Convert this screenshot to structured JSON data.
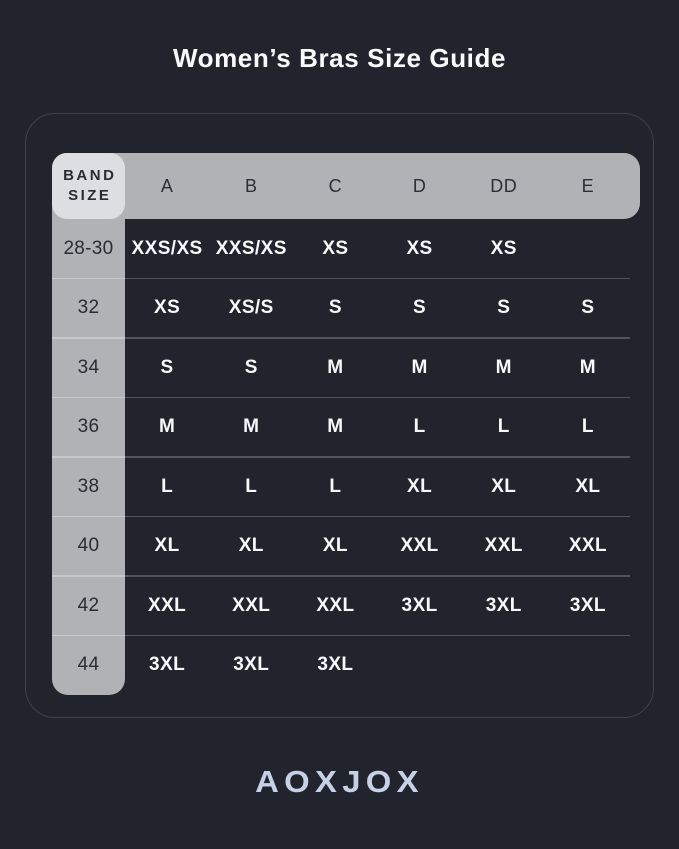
{
  "page": {
    "title": "Women’s Bras Size Guide",
    "brand": "AOXJOX",
    "background_color": "#22242d"
  },
  "colors": {
    "bg": "#22242d",
    "panel_border": "#3e414a",
    "gray_header": "#b1b2b6",
    "light_corner_cell": "#dddee1",
    "dark_text": "#2a2c34",
    "white_text": "#f7f8f9",
    "band_divider": "#c7c8cb",
    "data_divider": "#52545d",
    "logo": "#c7d1e5"
  },
  "table": {
    "corner_header_lines": [
      "BAND",
      "SIZE"
    ],
    "columns": [
      "A",
      "B",
      "C",
      "D",
      "DD",
      "E"
    ],
    "rows": [
      {
        "band": "28-30",
        "cells": [
          "XXS/XS",
          "XXS/XS",
          "XS",
          "XS",
          "XS",
          ""
        ]
      },
      {
        "band": "32",
        "cells": [
          "XS",
          "XS/S",
          "S",
          "S",
          "S",
          "S"
        ]
      },
      {
        "band": "34",
        "cells": [
          "S",
          "S",
          "M",
          "M",
          "M",
          "M"
        ]
      },
      {
        "band": "36",
        "cells": [
          "M",
          "M",
          "M",
          "L",
          "L",
          "L"
        ]
      },
      {
        "band": "38",
        "cells": [
          "L",
          "L",
          "L",
          "XL",
          "XL",
          "XL"
        ]
      },
      {
        "band": "40",
        "cells": [
          "XL",
          "XL",
          "XL",
          "XXL",
          "XXL",
          "XXL"
        ]
      },
      {
        "band": "42",
        "cells": [
          "XXL",
          "XXL",
          "XXL",
          "3XL",
          "3XL",
          "3XL"
        ]
      },
      {
        "band": "44",
        "cells": [
          "3XL",
          "3XL",
          "3XL",
          "",
          "",
          ""
        ]
      }
    ]
  }
}
